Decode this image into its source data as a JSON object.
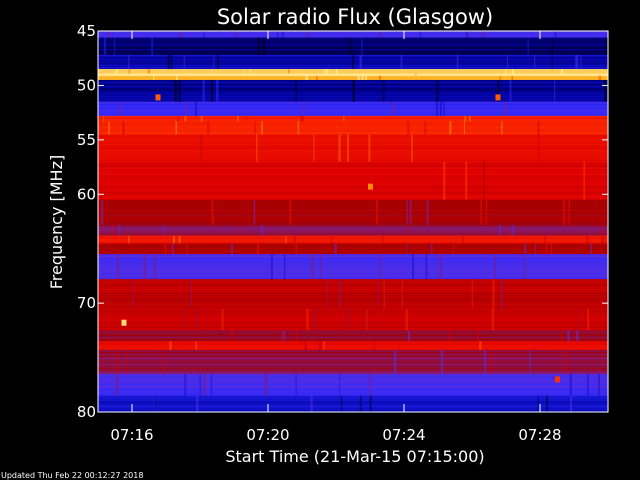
{
  "chart_data": {
    "type": "heatmap",
    "title": "Solar radio Flux (Glasgow)",
    "xlabel": "Start Time (21-Mar-15 07:15:00)",
    "ylabel": "Frequency [MHz]",
    "xlim": [
      "07:15:00",
      "07:30:00"
    ],
    "ylim": [
      45,
      80
    ],
    "y_ticks": [
      45,
      50,
      55,
      60,
      70,
      80
    ],
    "x_ticks": [
      "07:16",
      "07:20",
      "07:24",
      "07:28"
    ],
    "colormap": [
      "#000000",
      "#0000a0",
      "#2a2aff",
      "#7030d0",
      "#a00000",
      "#e00000",
      "#ff3000",
      "#ffa000",
      "#ffffc0"
    ],
    "frequency_bands_MHz": [
      {
        "from": 45.0,
        "to": 45.6,
        "level": 0.3
      },
      {
        "from": 45.6,
        "to": 47.2,
        "level": 0.08
      },
      {
        "from": 47.2,
        "to": 48.5,
        "level": 0.15
      },
      {
        "from": 48.5,
        "to": 48.9,
        "level": 0.92
      },
      {
        "from": 48.9,
        "to": 49.1,
        "level": 1.0
      },
      {
        "from": 49.1,
        "to": 49.5,
        "level": 0.9
      },
      {
        "from": 49.5,
        "to": 51.5,
        "level": 0.12
      },
      {
        "from": 51.5,
        "to": 52.8,
        "level": 0.28
      },
      {
        "from": 52.8,
        "to": 53.3,
        "level": 0.7
      },
      {
        "from": 53.3,
        "to": 54.5,
        "level": 0.72
      },
      {
        "from": 54.5,
        "to": 57.0,
        "level": 0.66
      },
      {
        "from": 57.0,
        "to": 60.5,
        "level": 0.62
      },
      {
        "from": 60.5,
        "to": 62.8,
        "level": 0.52
      },
      {
        "from": 62.8,
        "to": 63.8,
        "level": 0.45
      },
      {
        "from": 63.8,
        "to": 64.5,
        "level": 0.7
      },
      {
        "from": 64.5,
        "to": 65.5,
        "level": 0.52
      },
      {
        "from": 65.5,
        "to": 67.8,
        "level": 0.3
      },
      {
        "from": 67.8,
        "to": 70.5,
        "level": 0.56
      },
      {
        "from": 70.5,
        "to": 72.5,
        "level": 0.58
      },
      {
        "from": 72.5,
        "to": 73.5,
        "level": 0.48
      },
      {
        "from": 73.5,
        "to": 74.3,
        "level": 0.66
      },
      {
        "from": 74.3,
        "to": 76.5,
        "level": 0.46
      },
      {
        "from": 76.5,
        "to": 78.5,
        "level": 0.3
      },
      {
        "from": 78.5,
        "to": 80.0,
        "level": 0.18
      }
    ],
    "bright_events": [
      {
        "time": "07:23:00",
        "frequency_MHz": 59.3,
        "level": 0.85
      },
      {
        "time": "07:15:45",
        "frequency_MHz": 71.8,
        "level": 0.95
      },
      {
        "time": "07:28:30",
        "frequency_MHz": 77.0,
        "level": 0.75
      },
      {
        "time": "07:16:45",
        "frequency_MHz": 51.1,
        "level": 0.8
      },
      {
        "time": "07:26:45",
        "frequency_MHz": 51.1,
        "level": 0.8
      }
    ]
  },
  "footer_text": "Updated Thu Feb 22 00:12:27 2018"
}
